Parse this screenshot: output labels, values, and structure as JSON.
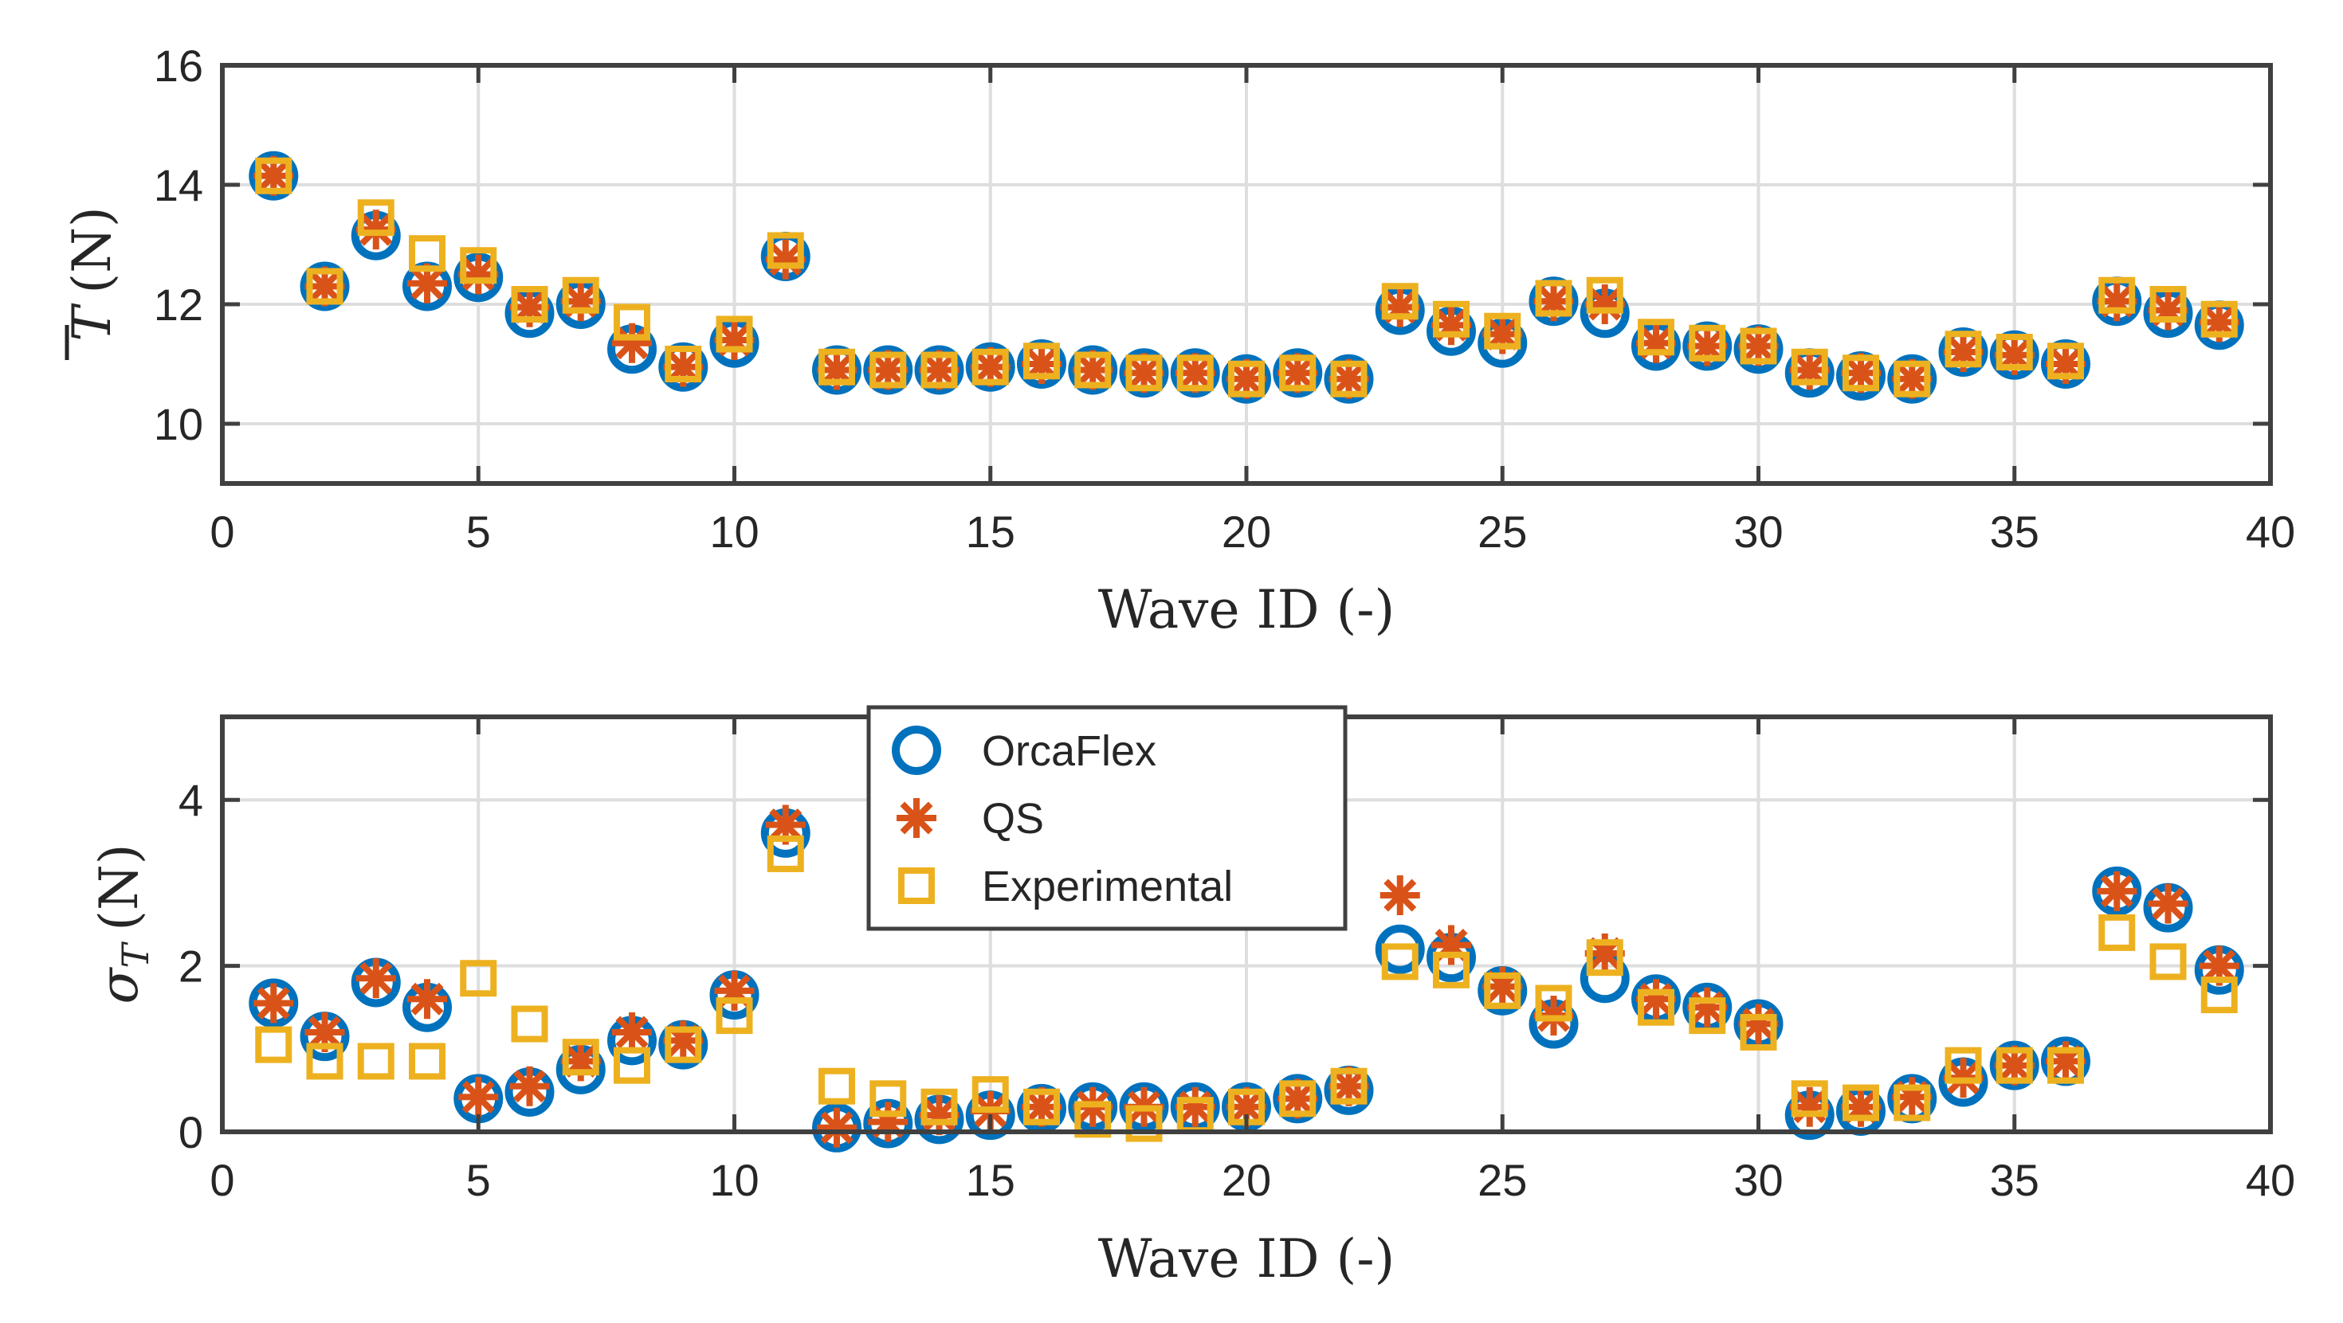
{
  "chart_data": [
    {
      "type": "scatter",
      "title": "",
      "xlabel": "Wave ID (-)",
      "ylabel": {
        "symbol": "T",
        "overline": true,
        "unit": "(N)"
      },
      "xlim": [
        0,
        40
      ],
      "ylim": [
        9,
        16
      ],
      "xticks": [
        0,
        5,
        10,
        15,
        20,
        25,
        30,
        35,
        40
      ],
      "yticks": [
        10,
        12,
        14,
        16
      ],
      "grid": true,
      "x": [
        1,
        2,
        3,
        4,
        5,
        6,
        7,
        8,
        9,
        10,
        11,
        12,
        13,
        14,
        15,
        16,
        17,
        18,
        19,
        20,
        21,
        22,
        23,
        24,
        25,
        26,
        27,
        28,
        29,
        30,
        31,
        32,
        33,
        34,
        35,
        36,
        37,
        38,
        39
      ],
      "series": [
        {
          "name": "OrcaFlex",
          "marker": "circle",
          "values": [
            14.15,
            12.3,
            13.15,
            12.3,
            12.45,
            11.85,
            12.0,
            11.25,
            10.95,
            11.35,
            12.8,
            10.9,
            10.9,
            10.9,
            10.95,
            11.0,
            10.9,
            10.85,
            10.85,
            10.75,
            10.85,
            10.75,
            11.9,
            11.55,
            11.35,
            12.05,
            11.85,
            11.3,
            11.3,
            11.25,
            10.85,
            10.8,
            10.75,
            11.2,
            11.15,
            11.0,
            12.05,
            11.85,
            11.65
          ]
        },
        {
          "name": "QS",
          "marker": "asterisk",
          "values": [
            14.15,
            12.3,
            13.25,
            12.35,
            12.5,
            11.95,
            12.05,
            11.35,
            10.95,
            11.4,
            12.75,
            10.9,
            10.9,
            10.9,
            10.95,
            11.0,
            10.9,
            10.85,
            10.85,
            10.75,
            10.85,
            10.75,
            11.95,
            11.65,
            11.5,
            12.05,
            12.0,
            11.35,
            11.3,
            11.3,
            10.9,
            10.85,
            10.75,
            11.2,
            11.15,
            11.0,
            12.05,
            11.9,
            11.7
          ]
        },
        {
          "name": "Experimental",
          "marker": "square",
          "values": [
            14.15,
            12.3,
            13.45,
            12.85,
            12.65,
            12.0,
            12.15,
            11.7,
            11.0,
            11.5,
            12.9,
            10.95,
            10.9,
            10.9,
            10.95,
            11.05,
            10.9,
            10.85,
            10.85,
            10.75,
            10.85,
            10.75,
            12.05,
            11.75,
            11.55,
            12.1,
            12.15,
            11.45,
            11.35,
            11.3,
            10.95,
            10.85,
            10.75,
            11.25,
            11.2,
            11.05,
            12.15,
            12.0,
            11.75
          ]
        }
      ]
    },
    {
      "type": "scatter",
      "title": "",
      "xlabel": "Wave ID (-)",
      "ylabel": {
        "symbol": "σ",
        "subscript": "T",
        "unit": "(N)"
      },
      "xlim": [
        0,
        40
      ],
      "ylim": [
        0,
        5
      ],
      "xticks": [
        0,
        5,
        10,
        15,
        20,
        25,
        30,
        35,
        40
      ],
      "yticks": [
        0,
        2,
        4
      ],
      "grid": true,
      "legend": "top-center",
      "x": [
        1,
        2,
        3,
        4,
        5,
        6,
        7,
        8,
        9,
        10,
        11,
        12,
        13,
        14,
        15,
        16,
        17,
        18,
        19,
        20,
        21,
        22,
        23,
        24,
        25,
        26,
        27,
        28,
        29,
        30,
        31,
        32,
        33,
        34,
        35,
        36,
        37,
        38,
        39
      ],
      "series": [
        {
          "name": "OrcaFlex",
          "marker": "circle",
          "values": [
            1.55,
            1.15,
            1.8,
            1.5,
            0.4,
            0.48,
            0.75,
            1.1,
            1.05,
            1.65,
            3.6,
            0.05,
            0.1,
            0.15,
            0.2,
            0.28,
            0.3,
            0.3,
            0.3,
            0.3,
            0.4,
            0.5,
            2.2,
            2.1,
            1.7,
            1.3,
            1.85,
            1.6,
            1.5,
            1.3,
            0.2,
            0.25,
            0.4,
            0.6,
            0.8,
            0.85,
            2.9,
            2.7,
            1.95
          ]
        },
        {
          "name": "QS",
          "marker": "asterisk",
          "values": [
            1.55,
            1.2,
            1.85,
            1.6,
            0.42,
            0.55,
            0.85,
            1.2,
            1.1,
            1.7,
            3.7,
            0.05,
            0.12,
            0.2,
            0.25,
            0.3,
            0.3,
            0.3,
            0.3,
            0.3,
            0.4,
            0.55,
            2.85,
            2.25,
            1.75,
            1.4,
            2.15,
            1.6,
            1.5,
            1.3,
            0.3,
            0.3,
            0.42,
            0.65,
            0.8,
            0.85,
            2.9,
            2.75,
            2.0
          ]
        },
        {
          "name": "Experimental",
          "marker": "square",
          "values": [
            1.05,
            0.85,
            0.85,
            0.85,
            1.85,
            1.3,
            0.9,
            0.8,
            1.05,
            1.4,
            3.35,
            0.55,
            0.4,
            0.3,
            0.45,
            0.3,
            0.15,
            0.1,
            0.2,
            0.3,
            0.4,
            0.55,
            2.05,
            1.95,
            1.7,
            1.55,
            2.1,
            1.5,
            1.4,
            1.2,
            0.4,
            0.35,
            0.35,
            0.8,
            0.8,
            0.8,
            2.4,
            2.05,
            1.65
          ]
        }
      ]
    }
  ],
  "colors": {
    "OrcaFlex": "#0072BD",
    "QS": "#D95319",
    "Experimental": "#EDB120",
    "axis": "#404040",
    "grid": "#dedede"
  }
}
